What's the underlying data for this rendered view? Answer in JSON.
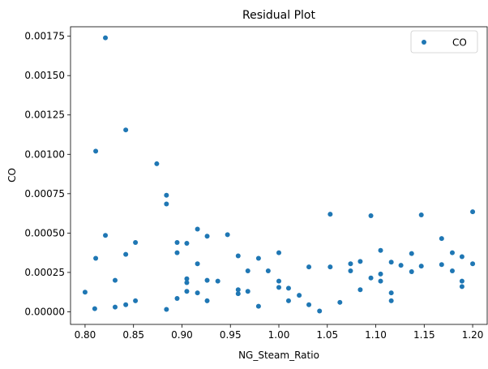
{
  "chart_data": {
    "type": "scatter",
    "title": "Residual Plot",
    "xlabel": "NG_Steam_Ratio",
    "ylabel": "CO",
    "xlim": [
      0.785,
      1.215
    ],
    "ylim": [
      -8e-05,
      0.00181
    ],
    "xticks": [
      "0.80",
      "0.85",
      "0.90",
      "0.95",
      "1.00",
      "1.05",
      "1.10",
      "1.15",
      "1.20"
    ],
    "yticks": [
      "0.00000",
      "0.00025",
      "0.00050",
      "0.00075",
      "0.00100",
      "0.00125",
      "0.00150",
      "0.00175"
    ],
    "grid": false,
    "legend_position": "top-right",
    "series": [
      {
        "name": "CO",
        "color": "#1f77b4",
        "points": [
          [
            0.8,
            0.000125
          ],
          [
            0.81,
            2e-05
          ],
          [
            0.811,
            0.00102
          ],
          [
            0.811,
            0.00034
          ],
          [
            0.821,
            0.00174
          ],
          [
            0.821,
            0.000485
          ],
          [
            0.831,
            3e-05
          ],
          [
            0.831,
            0.0002
          ],
          [
            0.842,
            0.001155
          ],
          [
            0.842,
            0.000365
          ],
          [
            0.842,
            4.5e-05
          ],
          [
            0.852,
            0.00044
          ],
          [
            0.852,
            7e-05
          ],
          [
            0.874,
            0.00094
          ],
          [
            0.884,
            0.00074
          ],
          [
            0.884,
            0.000685
          ],
          [
            0.884,
            1.5e-05
          ],
          [
            0.895,
            0.00044
          ],
          [
            0.895,
            0.000375
          ],
          [
            0.895,
            8.5e-05
          ],
          [
            0.905,
            0.000435
          ],
          [
            0.905,
            0.00021
          ],
          [
            0.905,
            0.000185
          ],
          [
            0.905,
            0.00013
          ],
          [
            0.916,
            0.000525
          ],
          [
            0.916,
            0.000305
          ],
          [
            0.916,
            0.00012
          ],
          [
            0.926,
            0.00048
          ],
          [
            0.926,
            0.0002
          ],
          [
            0.926,
            7e-05
          ],
          [
            0.937,
            0.000195
          ],
          [
            0.947,
            0.00049
          ],
          [
            0.958,
            0.000355
          ],
          [
            0.958,
            0.00014
          ],
          [
            0.958,
            0.000115
          ],
          [
            0.968,
            0.00026
          ],
          [
            0.968,
            0.00013
          ],
          [
            0.979,
            0.00034
          ],
          [
            0.979,
            3.5e-05
          ],
          [
            0.989,
            0.00026
          ],
          [
            1.0,
            0.000375
          ],
          [
            1.0,
            0.000195
          ],
          [
            1.0,
            0.000155
          ],
          [
            1.01,
            0.00015
          ],
          [
            1.01,
            7e-05
          ],
          [
            1.021,
            0.000105
          ],
          [
            1.031,
            0.000285
          ],
          [
            1.031,
            4.5e-05
          ],
          [
            1.042,
            5e-06
          ],
          [
            1.053,
            0.00062
          ],
          [
            1.053,
            0.000285
          ],
          [
            1.063,
            6e-05
          ],
          [
            1.074,
            0.000305
          ],
          [
            1.074,
            0.00026
          ],
          [
            1.084,
            0.00032
          ],
          [
            1.084,
            0.00014
          ],
          [
            1.095,
            0.00061
          ],
          [
            1.095,
            0.000215
          ],
          [
            1.105,
            0.00039
          ],
          [
            1.105,
            0.00024
          ],
          [
            1.105,
            0.000195
          ],
          [
            1.116,
            0.000315
          ],
          [
            1.116,
            0.00012
          ],
          [
            1.116,
            7e-05
          ],
          [
            1.126,
            0.000295
          ],
          [
            1.137,
            0.00037
          ],
          [
            1.137,
            0.000255
          ],
          [
            1.147,
            0.000615
          ],
          [
            1.147,
            0.00029
          ],
          [
            1.168,
            0.000465
          ],
          [
            1.168,
            0.0003
          ],
          [
            1.179,
            0.000375
          ],
          [
            1.179,
            0.00026
          ],
          [
            1.189,
            0.00035
          ],
          [
            1.189,
            0.000195
          ],
          [
            1.189,
            0.00016
          ],
          [
            1.2,
            0.000635
          ],
          [
            1.2,
            0.000305
          ]
        ]
      }
    ]
  }
}
